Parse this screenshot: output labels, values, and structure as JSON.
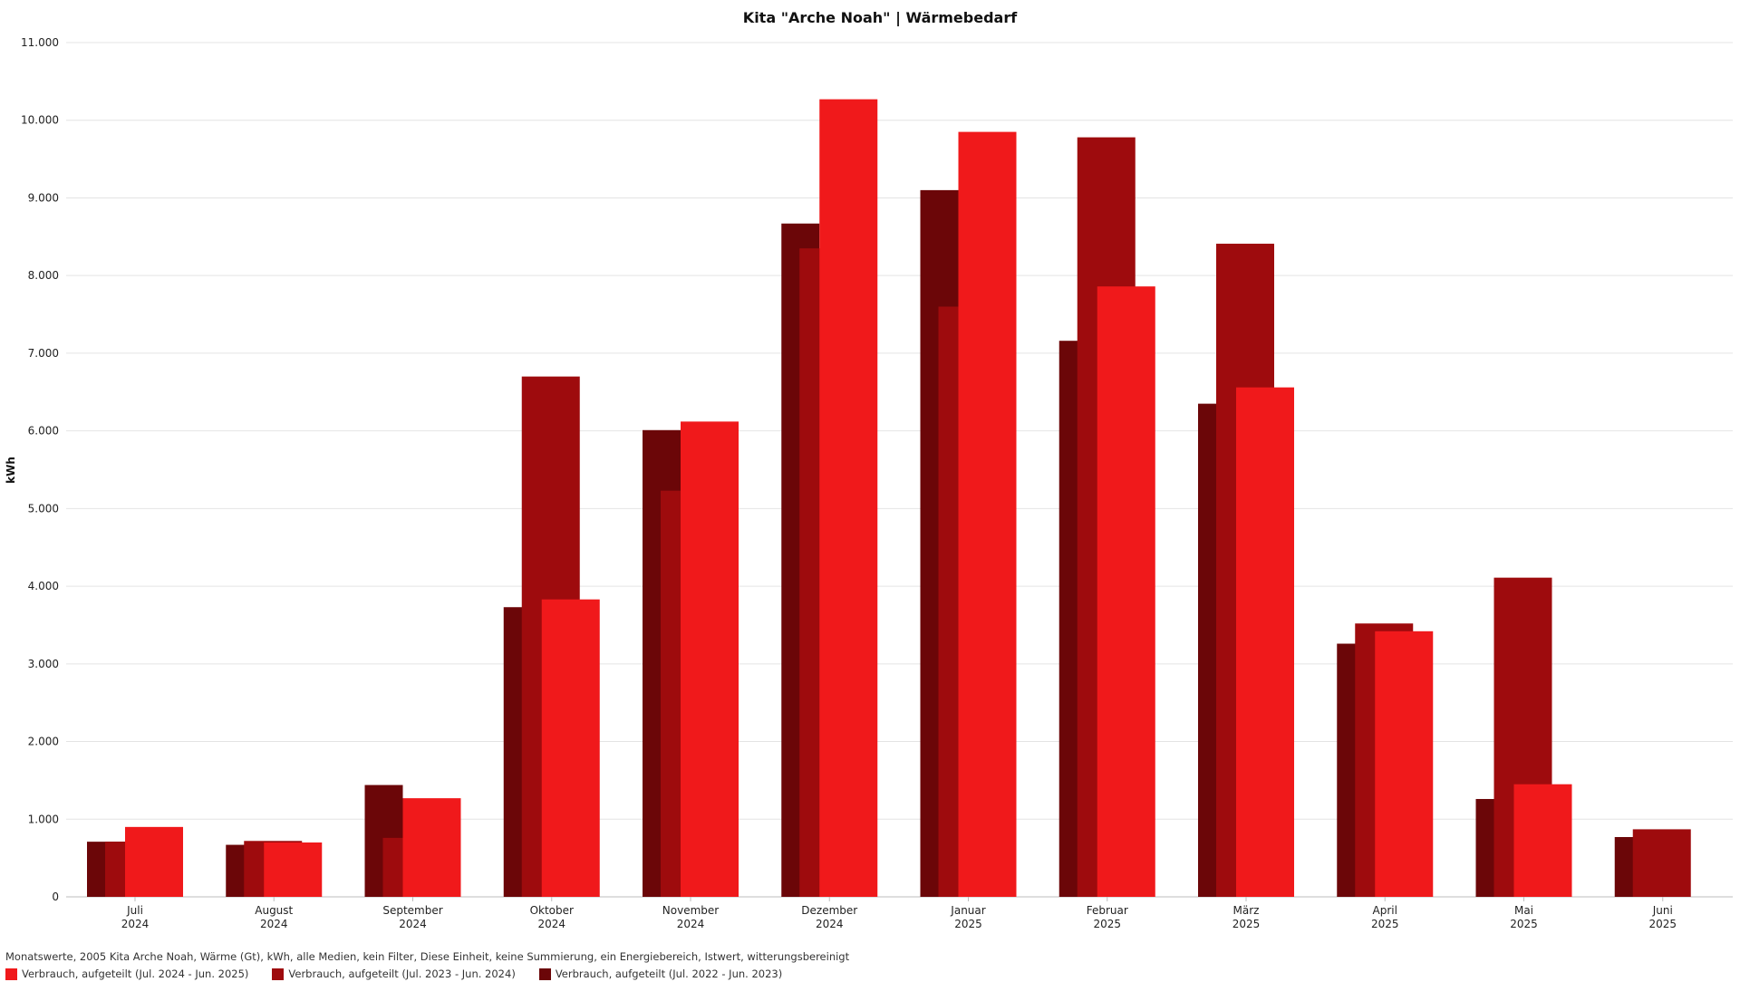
{
  "chart_data": {
    "type": "bar",
    "title": "Kita \"Arche Noah\" | Wärmebedarf",
    "ylabel": "kWh",
    "ylim": [
      0,
      11000
    ],
    "yticks": [
      "0",
      "1.000",
      "2.000",
      "3.000",
      "4.000",
      "5.000",
      "6.000",
      "7.000",
      "8.000",
      "9.000",
      "10.000",
      "11.000"
    ],
    "categories": [
      [
        "Juli",
        "2024"
      ],
      [
        "August",
        "2024"
      ],
      [
        "September",
        "2024"
      ],
      [
        "Oktober",
        "2024"
      ],
      [
        "November",
        "2024"
      ],
      [
        "Dezember",
        "2024"
      ],
      [
        "Januar",
        "2025"
      ],
      [
        "Februar",
        "2025"
      ],
      [
        "März",
        "2025"
      ],
      [
        "April",
        "2025"
      ],
      [
        "Mai",
        "2025"
      ],
      [
        "Juni",
        "2025"
      ]
    ],
    "series": [
      {
        "name": "Verbrauch, aufgeteilt (Jul. 2022 - Jun. 2023)",
        "color": "#6b0608",
        "values": [
          710,
          670,
          1440,
          3730,
          6010,
          8670,
          9100,
          7160,
          6350,
          3260,
          1260,
          770
        ]
      },
      {
        "name": "Verbrauch, aufgeteilt (Jul. 2023 - Jun. 2024)",
        "color": "#9e0b0d",
        "values": [
          710,
          720,
          760,
          6700,
          5230,
          8350,
          7600,
          9780,
          8410,
          3520,
          4110,
          870
        ]
      },
      {
        "name": "Verbrauch, aufgeteilt (Jul. 2024 - Jun. 2025)",
        "color": "#f0191b",
        "values": [
          900,
          700,
          1270,
          3830,
          6120,
          10270,
          9850,
          7860,
          6560,
          3420,
          1450,
          null
        ]
      }
    ],
    "grid": true,
    "legend_placement": "bottom-left"
  },
  "footer": {
    "description": "Monatswerte, 2005 Kita Arche Noah, Wärme (Gt), kWh, alle Medien, kein Filter, Diese Einheit, keine Summierung, ein Energiebereich, Istwert, witterungsbereinigt"
  },
  "legend": {
    "items": [
      {
        "label": "Verbrauch, aufgeteilt (Jul. 2024 - Jun. 2025)",
        "color": "#f0191b"
      },
      {
        "label": "Verbrauch, aufgeteilt (Jul. 2023 - Jun. 2024)",
        "color": "#9e0b0d"
      },
      {
        "label": "Verbrauch, aufgeteilt (Jul. 2022 - Jun. 2023)",
        "color": "#6b0608"
      }
    ]
  }
}
